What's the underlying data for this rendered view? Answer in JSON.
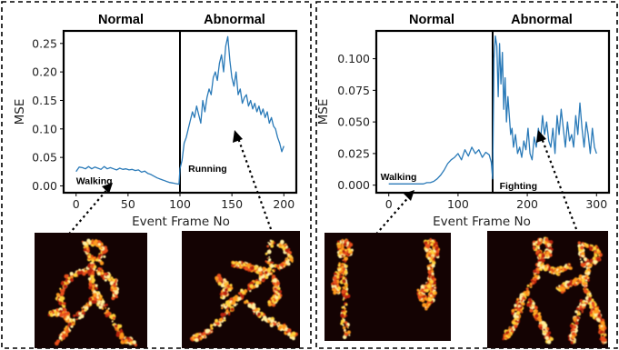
{
  "chart_data": [
    {
      "type": "line",
      "section_labels": [
        "Normal",
        "Abnormal"
      ],
      "xlabel": "Event Frame No",
      "ylabel": "MSE",
      "xlim": [
        -12,
        212
      ],
      "ylim": [
        -0.012,
        0.272
      ],
      "xticks": [
        0,
        50,
        100,
        150,
        200
      ],
      "yticks": [
        "0.00",
        "0.05",
        "0.10",
        "0.15",
        "0.20",
        "0.25"
      ],
      "ytick_values": [
        0,
        0.05,
        0.1,
        0.15,
        0.2,
        0.25
      ],
      "divider_x": 100,
      "annotations": [
        {
          "text": "Walking",
          "x": 0,
          "y": 0.003
        },
        {
          "text": "Running",
          "x": 108,
          "y": 0.025
        }
      ],
      "line_color": "#2a7ab8",
      "series": [
        {
          "x": [
            0,
            3,
            6,
            9,
            12,
            15,
            18,
            21,
            24,
            27,
            30,
            33,
            36,
            39,
            42,
            45,
            48,
            51,
            54,
            57,
            60,
            63,
            66,
            69,
            72,
            75,
            78,
            81,
            84,
            87,
            90,
            93,
            96,
            99,
            100,
            102,
            104,
            106,
            108,
            110,
            112,
            114,
            116,
            118,
            120,
            122,
            124,
            126,
            128,
            130,
            132,
            134,
            136,
            138,
            140,
            142,
            144,
            146,
            148,
            150,
            152,
            154,
            156,
            158,
            160,
            162,
            164,
            166,
            168,
            170,
            172,
            174,
            176,
            178,
            180,
            182,
            184,
            186,
            188,
            190,
            192,
            194,
            196,
            198,
            200
          ],
          "y": [
            0.025,
            0.033,
            0.032,
            0.03,
            0.034,
            0.03,
            0.033,
            0.031,
            0.029,
            0.034,
            0.03,
            0.032,
            0.03,
            0.028,
            0.031,
            0.029,
            0.03,
            0.028,
            0.029,
            0.027,
            0.028,
            0.024,
            0.026,
            0.022,
            0.02,
            0.017,
            0.014,
            0.012,
            0.01,
            0.008,
            0.006,
            0.005,
            0.004,
            0.003,
            0.03,
            0.045,
            0.075,
            0.085,
            0.1,
            0.115,
            0.13,
            0.12,
            0.14,
            0.125,
            0.11,
            0.15,
            0.13,
            0.155,
            0.17,
            0.16,
            0.19,
            0.2,
            0.185,
            0.215,
            0.23,
            0.2,
            0.245,
            0.262,
            0.22,
            0.19,
            0.175,
            0.2,
            0.16,
            0.17,
            0.145,
            0.155,
            0.16,
            0.14,
            0.15,
            0.135,
            0.145,
            0.13,
            0.14,
            0.125,
            0.135,
            0.12,
            0.13,
            0.11,
            0.12,
            0.105,
            0.1,
            0.085,
            0.075,
            0.06,
            0.07
          ]
        }
      ]
    },
    {
      "type": "line",
      "section_labels": [
        "Normal",
        "Abnormal"
      ],
      "xlabel": "Event Frame No",
      "ylabel": "MSE",
      "xlim": [
        -18,
        318
      ],
      "ylim": [
        -0.006,
        0.122
      ],
      "xticks": [
        0,
        100,
        200,
        300
      ],
      "yticks": [
        "0.000",
        "0.025",
        "0.050",
        "0.075",
        "0.100"
      ],
      "ytick_values": [
        0,
        0.025,
        0.05,
        0.075,
        0.1
      ],
      "divider_x": 150,
      "annotations": [
        {
          "text": "Walking",
          "x": -12,
          "y": 0.004
        },
        {
          "text": "Fighting",
          "x": 160,
          "y": -0.003
        }
      ],
      "line_color": "#2a7ab8",
      "series": [
        {
          "x": [
            0,
            5,
            10,
            15,
            20,
            25,
            30,
            35,
            40,
            45,
            50,
            55,
            60,
            65,
            70,
            75,
            80,
            85,
            90,
            95,
            100,
            105,
            110,
            115,
            120,
            125,
            130,
            135,
            140,
            145,
            148,
            150,
            152,
            154,
            156,
            158,
            160,
            162,
            164,
            166,
            168,
            170,
            172,
            174,
            176,
            178,
            180,
            183,
            186,
            189,
            192,
            195,
            198,
            201,
            204,
            207,
            210,
            213,
            216,
            219,
            222,
            225,
            228,
            231,
            234,
            237,
            240,
            243,
            246,
            249,
            252,
            255,
            258,
            261,
            264,
            267,
            270,
            273,
            276,
            279,
            282,
            285,
            288,
            291,
            294,
            297,
            300
          ],
          "y": [
            0.001,
            0.001,
            0.001,
            0.001,
            0.001,
            0.001,
            0.001,
            0.001,
            0.001,
            0.001,
            0.001,
            0.002,
            0.002,
            0.003,
            0.005,
            0.008,
            0.012,
            0.017,
            0.02,
            0.022,
            0.025,
            0.02,
            0.028,
            0.023,
            0.03,
            0.025,
            0.028,
            0.022,
            0.026,
            0.024,
            0.018,
            0.005,
            0.1,
            0.118,
            0.11,
            0.07,
            0.112,
            0.08,
            0.105,
            0.06,
            0.085,
            0.05,
            0.07,
            0.055,
            0.04,
            0.045,
            0.03,
            0.04,
            0.025,
            0.03,
            0.022,
            0.035,
            0.028,
            0.045,
            0.025,
            0.02,
            0.038,
            0.03,
            0.045,
            0.035,
            0.055,
            0.04,
            0.05,
            0.035,
            0.03,
            0.045,
            0.025,
            0.055,
            0.04,
            0.06,
            0.045,
            0.03,
            0.05,
            0.035,
            0.04,
            0.03,
            0.055,
            0.04,
            0.065,
            0.045,
            0.03,
            0.05,
            0.04,
            0.025,
            0.045,
            0.03,
            0.025
          ]
        }
      ]
    }
  ],
  "thumbnails": [
    {
      "name": "Walking",
      "kind": "walking-single"
    },
    {
      "name": "Running",
      "kind": "running"
    },
    {
      "name": "Walking",
      "kind": "walking-two"
    },
    {
      "name": "Fighting",
      "kind": "fighting"
    }
  ]
}
